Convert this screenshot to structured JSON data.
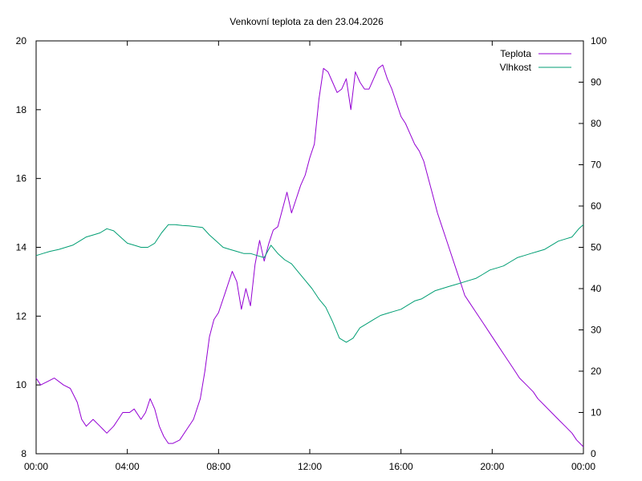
{
  "chart_data": {
    "type": "line",
    "title": "Venkovní teplota za den 23.04.2026",
    "xlabel": "",
    "ylabel": "",
    "y2label": "",
    "x_tick_labels": [
      "00:00",
      "04:00",
      "08:00",
      "12:00",
      "16:00",
      "20:00",
      "00:00"
    ],
    "x_range_hours": [
      0,
      24
    ],
    "ylim": [
      8,
      20
    ],
    "y_ticks": [
      8,
      10,
      12,
      14,
      16,
      18,
      20
    ],
    "y2lim": [
      0,
      100
    ],
    "y2_ticks": [
      0,
      10,
      20,
      30,
      40,
      50,
      60,
      70,
      80,
      90,
      100
    ],
    "grid": false,
    "legend_position": "top-right",
    "series": [
      {
        "name": "Teplota",
        "axis": "left",
        "color": "#9400d3",
        "x_hours": [
          0.0,
          0.2,
          0.5,
          0.8,
          1.2,
          1.5,
          1.8,
          2.0,
          2.2,
          2.5,
          2.8,
          3.1,
          3.4,
          3.6,
          3.8,
          4.1,
          4.3,
          4.6,
          4.8,
          5.0,
          5.2,
          5.4,
          5.6,
          5.8,
          6.0,
          6.3,
          6.6,
          6.9,
          7.2,
          7.4,
          7.6,
          7.8,
          8.0,
          8.3,
          8.6,
          8.8,
          9.0,
          9.2,
          9.4,
          9.6,
          9.8,
          10.0,
          10.2,
          10.4,
          10.6,
          10.8,
          11.0,
          11.2,
          11.4,
          11.6,
          11.8,
          12.0,
          12.2,
          12.4,
          12.6,
          12.8,
          13.0,
          13.2,
          13.4,
          13.6,
          13.8,
          14.0,
          14.2,
          14.4,
          14.6,
          14.8,
          15.0,
          15.2,
          15.4,
          15.6,
          15.8,
          16.0,
          16.2,
          16.4,
          16.6,
          16.8,
          17.0,
          17.2,
          17.4,
          17.6,
          17.8,
          18.0,
          18.2,
          18.4,
          18.6,
          18.8,
          19.0,
          19.3,
          19.6,
          19.9,
          20.2,
          20.5,
          20.8,
          21.0,
          21.2,
          21.5,
          21.8,
          22.0,
          22.3,
          22.6,
          22.9,
          23.2,
          23.5,
          23.7,
          24.0
        ],
        "values": [
          10.2,
          10.0,
          10.1,
          10.2,
          10.0,
          9.9,
          9.5,
          9.0,
          8.8,
          9.0,
          8.8,
          8.6,
          8.8,
          9.0,
          9.2,
          9.2,
          9.3,
          9.0,
          9.2,
          9.6,
          9.3,
          8.8,
          8.5,
          8.3,
          8.3,
          8.4,
          8.7,
          9.0,
          9.6,
          10.4,
          11.4,
          11.9,
          12.1,
          12.7,
          13.3,
          13.0,
          12.2,
          12.8,
          12.3,
          13.5,
          14.2,
          13.6,
          14.1,
          14.5,
          14.6,
          15.1,
          15.6,
          15.0,
          15.4,
          15.8,
          16.1,
          16.6,
          17.0,
          18.3,
          19.2,
          19.1,
          18.8,
          18.5,
          18.6,
          18.9,
          18.0,
          19.1,
          18.8,
          18.6,
          18.6,
          18.9,
          19.2,
          19.3,
          18.9,
          18.6,
          18.2,
          17.8,
          17.6,
          17.3,
          17.0,
          16.8,
          16.5,
          16.0,
          15.5,
          15.0,
          14.6,
          14.2,
          13.8,
          13.4,
          13.0,
          12.6,
          12.4,
          12.1,
          11.8,
          11.5,
          11.2,
          10.9,
          10.6,
          10.4,
          10.2,
          10.0,
          9.8,
          9.6,
          9.4,
          9.2,
          9.0,
          8.8,
          8.6,
          8.4,
          8.2
        ]
      },
      {
        "name": "Vlhkost",
        "axis": "right",
        "color": "#009e73",
        "x_hours": [
          0.0,
          0.3,
          0.6,
          1.0,
          1.3,
          1.6,
          1.9,
          2.2,
          2.5,
          2.8,
          3.1,
          3.4,
          3.7,
          4.0,
          4.3,
          4.6,
          4.9,
          5.2,
          5.5,
          5.8,
          6.1,
          6.4,
          6.7,
          7.0,
          7.3,
          7.6,
          7.9,
          8.2,
          8.5,
          8.8,
          9.1,
          9.4,
          9.7,
          10.0,
          10.3,
          10.6,
          10.9,
          11.2,
          11.5,
          11.8,
          12.1,
          12.4,
          12.7,
          13.0,
          13.3,
          13.6,
          13.9,
          14.2,
          14.5,
          14.8,
          15.1,
          15.4,
          15.7,
          16.0,
          16.3,
          16.6,
          16.9,
          17.2,
          17.5,
          17.8,
          18.1,
          18.4,
          18.7,
          19.0,
          19.3,
          19.6,
          19.9,
          20.2,
          20.5,
          20.8,
          21.1,
          21.4,
          21.7,
          22.0,
          22.3,
          22.6,
          22.9,
          23.2,
          23.5,
          23.8,
          24.0
        ],
        "values": [
          48,
          48.5,
          49,
          49.5,
          50,
          50.5,
          51.5,
          52.5,
          53,
          53.5,
          54.5,
          54,
          52.5,
          51,
          50.5,
          50,
          50,
          51,
          53.5,
          55.5,
          55.5,
          55.3,
          55.2,
          55,
          54.8,
          53,
          51.5,
          50,
          49.5,
          49,
          48.5,
          48.5,
          48,
          47.5,
          50.5,
          48.5,
          47,
          46,
          44,
          42,
          40,
          37.5,
          35.5,
          32,
          28,
          27,
          28,
          30.5,
          31.5,
          32.5,
          33.5,
          34,
          34.5,
          35,
          36,
          37,
          37.5,
          38.5,
          39.5,
          40,
          40.5,
          41,
          41.5,
          42,
          42.5,
          43.5,
          44.5,
          45,
          45.5,
          46.5,
          47.5,
          48,
          48.5,
          49,
          49.5,
          50.5,
          51.5,
          52,
          52.5,
          54.5,
          55.5
        ]
      }
    ]
  }
}
